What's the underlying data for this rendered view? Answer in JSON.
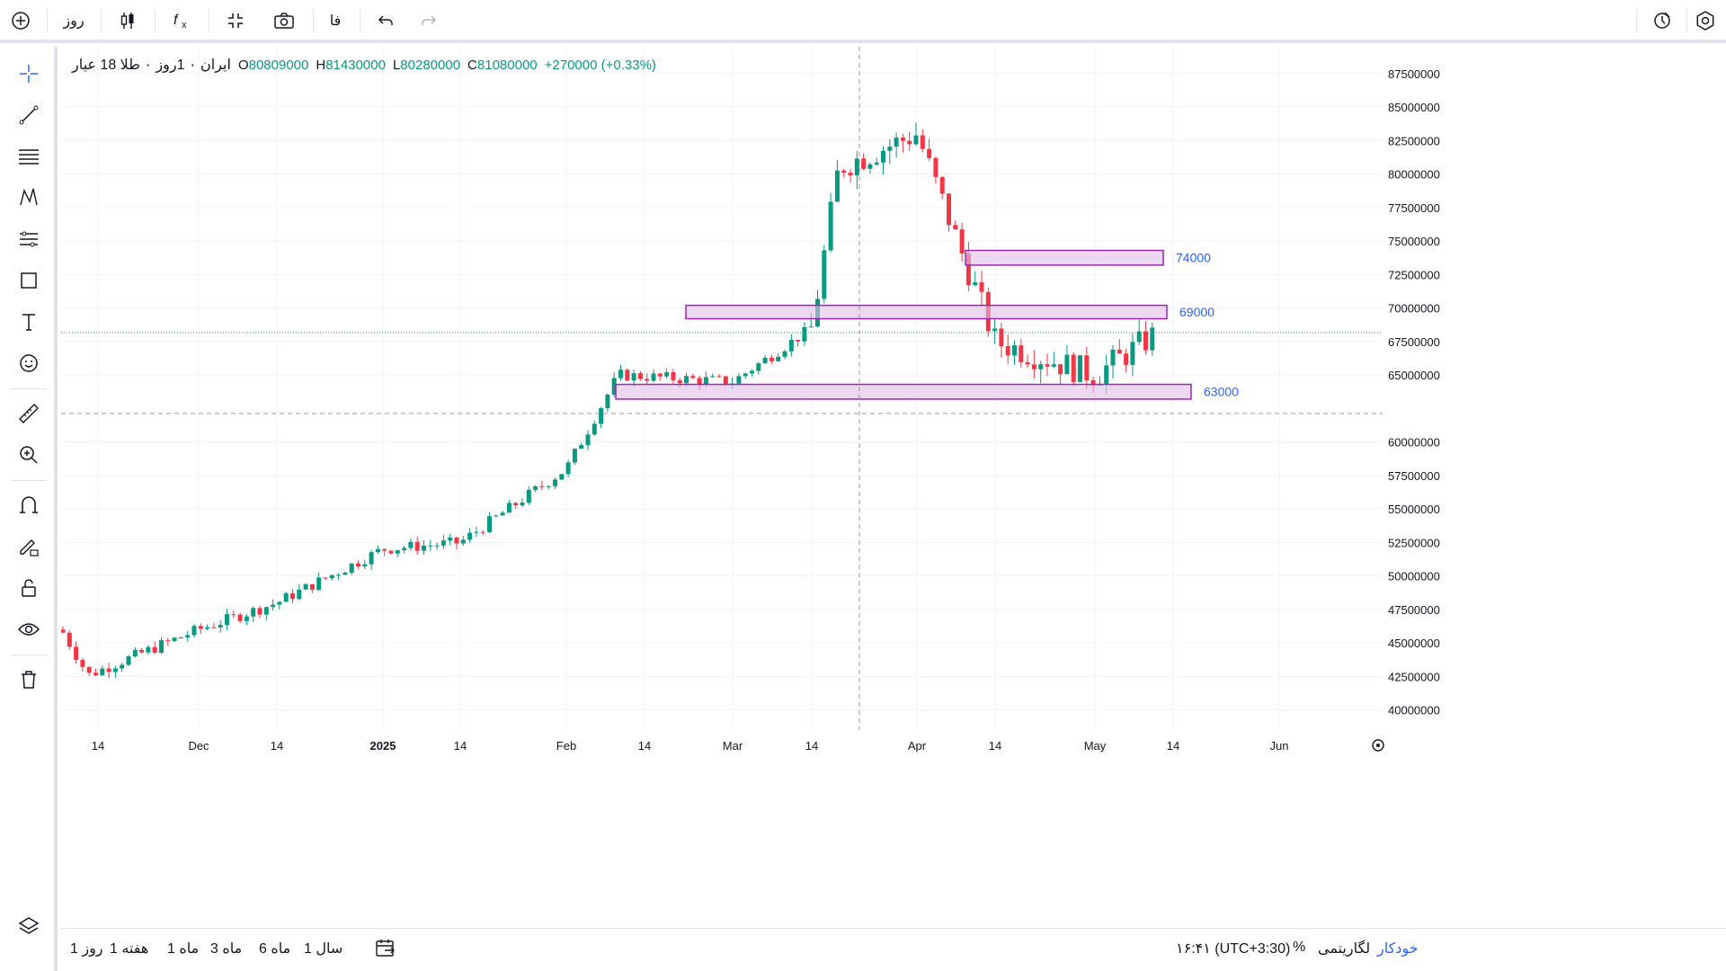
{
  "toolbar": {
    "add_symbol_icon": "plus-circle-icon",
    "interval": "روز",
    "chart_type_icon": "candles-icon",
    "indicators_icon": "fx-icon",
    "fullscreen_icon": "compress-icon",
    "snapshot_icon": "camera-icon",
    "language": "فا",
    "undo_icon": "undo-icon",
    "redo_icon": "redo-icon",
    "alert_icon": "alert-clock-icon",
    "settings_icon": "gear-icon"
  },
  "left_tools": [
    "crosshair-icon",
    "trend-line-icon",
    "fib-lines-icon",
    "pattern-icon",
    "long-short-icon",
    "rectangle-icon",
    "text-icon",
    "emoji-icon",
    "ruler-icon",
    "zoom-in-icon",
    "magnet-icon",
    "lock-pencil-icon",
    "lock-icon",
    "eye-icon",
    "trash-icon"
  ],
  "legend": {
    "symbol": "ایران ۰ 1روز ۰ طلا 18 عیار",
    "open_label": "O",
    "open": "80809000",
    "high_label": "H",
    "high": "81430000",
    "low_label": "L",
    "low": "80280000",
    "close_label": "C",
    "close": "81080000",
    "change": "+270000 (+0.33%)"
  },
  "price_labels": [
    "87500000",
    "85000000",
    "82500000",
    "80000000",
    "77500000",
    "75000000",
    "72500000",
    "70000000",
    "67500000",
    "65000000",
    "60000000",
    "57500000",
    "55000000",
    "52500000",
    "50000000",
    "47500000",
    "45000000",
    "42500000",
    "40000000"
  ],
  "time_labels": [
    "14",
    "Dec",
    "14",
    "2025",
    "14",
    "Feb",
    "14",
    "Mar",
    "14",
    "Apr",
    "14",
    "May",
    "14",
    "Jun"
  ],
  "current_price": "68171000",
  "crosshair_price": "62128440",
  "crosshair_date": "شنبه ۱۴۰۴/۱/۲",
  "zones": [
    {
      "label": "74000",
      "top": 74300000,
      "bottom": 73200000
    },
    {
      "label": "69000",
      "top": 70200000,
      "bottom": 69200000
    },
    {
      "label": "63000",
      "top": 64300000,
      "bottom": 63200000
    }
  ],
  "chart_data": {
    "type": "candlestick",
    "title": "ایران ۰ 1روز ۰ طلا 18 عیار",
    "y_range": [
      38500000,
      89500000
    ],
    "up_color": "#089981",
    "down_color": "#f23645",
    "zone_color": "#e1bee7",
    "zone_border": "#9c27b0",
    "label_color": "#2962ff",
    "last_close": 68171000,
    "crosshair_value": 62128440,
    "key_closes": [
      {
        "date": "Nov start",
        "close": 46000000
      },
      {
        "date": "Nov 18",
        "close": 42600000
      },
      {
        "date": "Dec",
        "close": 46000000
      },
      {
        "date": "Dec 14",
        "close": 48000000
      },
      {
        "date": "2025",
        "close": 52000000
      },
      {
        "date": "Jan 14",
        "close": 52500000
      },
      {
        "date": "Feb",
        "close": 58000000
      },
      {
        "date": "Feb 10",
        "close": 65000000
      },
      {
        "date": "Mar",
        "close": 64500000
      },
      {
        "date": "Mar 14",
        "close": 68500000
      },
      {
        "date": "Mar 20",
        "close": 80500000
      },
      {
        "date": "Apr",
        "close": 83000000
      },
      {
        "date": "Apr 14",
        "close": 67500000
      },
      {
        "date": "May",
        "close": 65000000
      },
      {
        "date": "May 12",
        "close": 68171000
      }
    ]
  },
  "bottom": {
    "periods": [
      "1 روز",
      "1 هفته",
      "1 ماه",
      "3 ماه",
      "6 ماه",
      "1 سال"
    ],
    "date_range_icon": "calendar-range-icon",
    "time": "۱۶:۴۱ (UTC+3:30)",
    "percent": "%",
    "log": "لگاریتمی",
    "auto": "خودکار",
    "settings_icon": "gear-icon"
  }
}
